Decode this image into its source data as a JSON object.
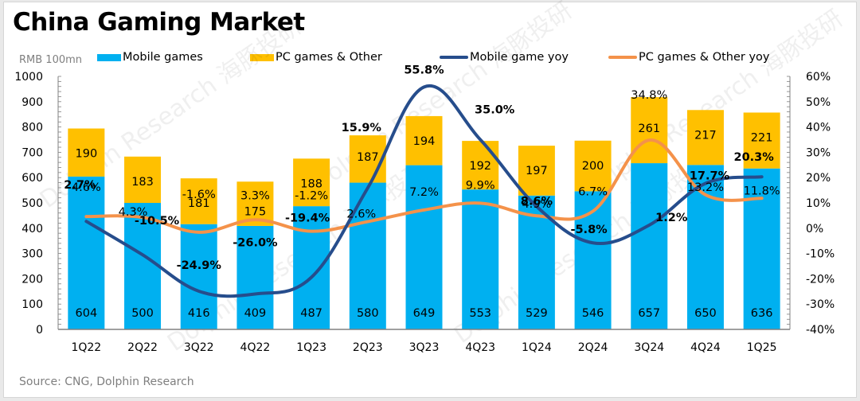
{
  "page": {
    "title": "China Gaming Market",
    "unit_label": "RMB 100mn",
    "source": "Source: CNG, Dolphin Research",
    "watermark": "Dolphin Research 海豚投研"
  },
  "colors": {
    "mobile": "#00B0F0",
    "pc": "#FFC000",
    "mobile_yoy": "#264D8C",
    "pc_yoy": "#F4924A",
    "axis": "#808080"
  },
  "chart_data": {
    "type": "bar",
    "stacked": true,
    "title": "China Gaming Market",
    "ylabel": "RMB 100mn",
    "ylim": [
      0,
      1000
    ],
    "y_ticks": [
      0,
      100,
      200,
      300,
      400,
      500,
      600,
      700,
      800,
      900,
      1000
    ],
    "y2lim": [
      -40,
      60
    ],
    "y2_ticks": [
      "-40%",
      "-30%",
      "-20%",
      "-10%",
      "0%",
      "10%",
      "20%",
      "30%",
      "40%",
      "50%",
      "60%"
    ],
    "y2_values": [
      -40,
      -30,
      -20,
      -10,
      0,
      10,
      20,
      30,
      40,
      50,
      60
    ],
    "categories": [
      "1Q22",
      "2Q22",
      "3Q22",
      "4Q22",
      "1Q23",
      "2Q23",
      "3Q23",
      "4Q23",
      "1Q24",
      "2Q24",
      "3Q24",
      "4Q24",
      "1Q25"
    ],
    "series": [
      {
        "name": "Mobile games",
        "type": "bar",
        "values": [
          604,
          500,
          416,
          409,
          487,
          580,
          649,
          553,
          529,
          546,
          657,
          650,
          636
        ]
      },
      {
        "name": "PC games & Other",
        "type": "bar",
        "values": [
          190,
          183,
          181,
          175,
          188,
          187,
          194,
          192,
          197,
          200,
          261,
          217,
          221
        ]
      },
      {
        "name": "Mobile game yoy",
        "type": "line",
        "axis": "right",
        "values": [
          2.7,
          -10.5,
          -24.9,
          -26.0,
          -19.4,
          15.9,
          55.8,
          35.0,
          8.6,
          -5.8,
          1.2,
          17.7,
          20.3
        ],
        "labels": [
          "2.7%",
          "-10.5%",
          "-24.9%",
          "-26.0%",
          "-19.4%",
          "15.9%",
          "55.8%",
          "35.0%",
          "8.6%",
          "-5.8%",
          "1.2%",
          "17.7%",
          "20.3%"
        ]
      },
      {
        "name": "PC games & Other yoy",
        "type": "line",
        "axis": "right",
        "values": [
          4.6,
          4.3,
          -1.6,
          3.3,
          -1.2,
          2.6,
          7.2,
          9.9,
          4.9,
          6.7,
          34.8,
          13.2,
          11.8
        ],
        "labels": [
          "4.6%",
          "4.3%",
          "-1.6%",
          "3.3%",
          "-1.2%",
          "2.6%",
          "7.2%",
          "9.9%",
          "4.9%",
          "6.7%",
          "34.8%",
          "13.2%",
          "11.8%"
        ]
      }
    ],
    "legend": "top",
    "grid": false
  }
}
